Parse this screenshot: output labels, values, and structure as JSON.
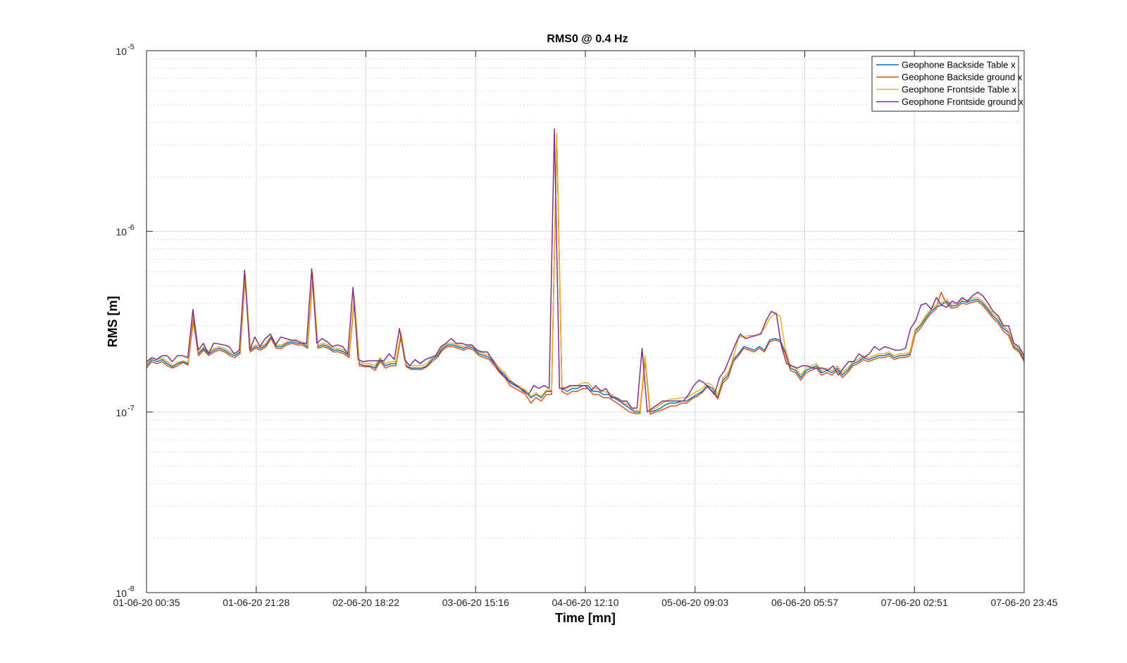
{
  "chart_data": {
    "type": "line",
    "title": "RMS0 @ 0.4 Hz",
    "xlabel": "Time [mn]",
    "ylabel": "RMS [m]",
    "yscale": "log",
    "ylim": [
      1e-08,
      1e-05
    ],
    "y_ticks": [
      {
        "base": "10",
        "exp": "-8",
        "value": 1e-08
      },
      {
        "base": "10",
        "exp": "-7",
        "value": 1e-07
      },
      {
        "base": "10",
        "exp": "-6",
        "value": 1e-06
      },
      {
        "base": "10",
        "exp": "-5",
        "value": 1e-05
      }
    ],
    "x_tick_labels": [
      "01-06-20 00:35",
      "01-06-20 21:28",
      "02-06-20 18:22",
      "03-06-20 15:16",
      "04-06-20 12:10",
      "05-06-20 09:03",
      "06-06-20 05:57",
      "07-06-20 02:51",
      "07-06-20 23:45"
    ],
    "grid": true,
    "legend_position": "top-right",
    "series": [
      {
        "name": "Geophone Backside Table x",
        "color": "#0072BD",
        "values": [
          1.8,
          1.95,
          1.9,
          1.95,
          1.85,
          1.78,
          1.85,
          1.9,
          1.85,
          3.3,
          2.1,
          2.25,
          2.1,
          2.2,
          2.25,
          2.2,
          2.1,
          2.05,
          2.15,
          5.6,
          2.2,
          2.3,
          2.25,
          2.35,
          2.6,
          2.3,
          2.3,
          2.4,
          2.45,
          2.4,
          2.4,
          2.3,
          5.6,
          2.3,
          2.35,
          2.3,
          2.2,
          2.2,
          2.15,
          2.05,
          4.2,
          1.85,
          1.8,
          1.8,
          1.75,
          1.95,
          1.8,
          1.85,
          1.85,
          2.65,
          1.8,
          1.75,
          1.75,
          1.75,
          1.8,
          1.95,
          2.05,
          2.25,
          2.35,
          2.35,
          2.3,
          2.25,
          2.3,
          2.25,
          2.1,
          2.05,
          2.0,
          1.85,
          1.7,
          1.6,
          1.45,
          1.4,
          1.35,
          1.3,
          1.2,
          1.25,
          1.2,
          1.3,
          1.3,
          34.0,
          1.35,
          1.3,
          1.35,
          1.35,
          1.4,
          1.4,
          1.3,
          1.3,
          1.25,
          1.25,
          1.2,
          1.15,
          1.1,
          1.05,
          1.0,
          1.0,
          2.0,
          1.0,
          1.02,
          1.05,
          1.1,
          1.12,
          1.12,
          1.15,
          1.15,
          1.2,
          1.25,
          1.3,
          1.4,
          1.35,
          1.2,
          1.5,
          1.6,
          1.95,
          2.1,
          2.3,
          2.25,
          2.2,
          2.3,
          2.2,
          2.5,
          2.55,
          2.5,
          2.15,
          1.75,
          1.7,
          1.55,
          1.7,
          1.75,
          1.8,
          1.65,
          1.7,
          1.65,
          1.75,
          1.6,
          1.7,
          1.85,
          1.9,
          2.0,
          1.95,
          2.0,
          2.05,
          2.05,
          2.1,
          2.0,
          2.05,
          2.05,
          2.1,
          2.8,
          3.0,
          3.3,
          3.6,
          3.8,
          3.9,
          4.1,
          3.85,
          3.9,
          4.1,
          4.05,
          4.15,
          4.2,
          4.0,
          3.7,
          3.4,
          3.2,
          2.9,
          2.75,
          2.3,
          2.2,
          1.95
        ]
      },
      {
        "name": "Geophone Backside ground x",
        "color": "#D95319",
        "values": [
          1.75,
          1.9,
          1.85,
          1.9,
          1.8,
          1.75,
          1.8,
          1.88,
          1.82,
          3.2,
          2.05,
          2.2,
          2.05,
          2.15,
          2.2,
          2.15,
          2.05,
          2.0,
          2.1,
          5.5,
          2.15,
          2.25,
          2.2,
          2.3,
          2.55,
          2.25,
          2.25,
          2.35,
          2.4,
          2.35,
          2.35,
          2.25,
          5.5,
          2.25,
          2.3,
          2.25,
          2.15,
          2.15,
          2.1,
          2.0,
          4.1,
          1.8,
          1.78,
          1.78,
          1.7,
          1.9,
          1.75,
          1.8,
          1.8,
          2.6,
          1.78,
          1.72,
          1.72,
          1.72,
          1.78,
          1.9,
          2.0,
          2.2,
          2.3,
          2.3,
          2.25,
          2.2,
          2.25,
          2.2,
          2.05,
          2.0,
          1.95,
          1.8,
          1.65,
          1.55,
          1.4,
          1.35,
          1.3,
          1.25,
          1.12,
          1.2,
          1.15,
          1.25,
          1.25,
          33.0,
          1.3,
          1.25,
          1.3,
          1.3,
          1.35,
          1.35,
          1.25,
          1.25,
          1.2,
          1.2,
          1.15,
          1.1,
          1.05,
          1.0,
          0.98,
          0.98,
          1.95,
          0.97,
          1.0,
          1.02,
          1.05,
          1.08,
          1.08,
          1.12,
          1.12,
          1.18,
          1.22,
          1.28,
          1.38,
          1.3,
          1.18,
          1.45,
          1.55,
          1.9,
          2.05,
          2.25,
          2.2,
          2.15,
          2.25,
          2.15,
          2.45,
          2.5,
          2.45,
          2.1,
          1.7,
          1.65,
          1.5,
          1.65,
          1.7,
          1.75,
          1.6,
          1.65,
          1.6,
          1.7,
          1.55,
          1.65,
          1.8,
          1.85,
          1.95,
          1.9,
          1.95,
          2.0,
          2.0,
          2.05,
          1.95,
          2.0,
          2.0,
          2.05,
          2.7,
          2.9,
          3.2,
          3.5,
          3.7,
          4.6,
          4.0,
          3.75,
          3.8,
          4.0,
          3.95,
          4.05,
          4.1,
          3.9,
          3.6,
          3.3,
          3.1,
          2.8,
          2.65,
          2.25,
          2.15,
          1.9
        ]
      },
      {
        "name": "Geophone Frontside Table x",
        "color": "#EDB120",
        "values": [
          1.85,
          2.0,
          1.95,
          2.0,
          1.9,
          1.8,
          1.88,
          1.92,
          1.88,
          3.5,
          2.15,
          2.3,
          2.15,
          2.25,
          2.3,
          2.25,
          2.15,
          2.1,
          2.2,
          5.8,
          2.25,
          2.35,
          2.3,
          2.4,
          2.65,
          2.35,
          2.35,
          2.45,
          2.5,
          2.45,
          2.45,
          2.35,
          5.9,
          2.35,
          2.4,
          2.35,
          2.25,
          2.25,
          2.2,
          2.1,
          4.4,
          1.9,
          1.85,
          1.85,
          1.8,
          2.0,
          1.85,
          1.9,
          1.9,
          2.75,
          1.85,
          1.8,
          1.8,
          1.8,
          1.85,
          2.0,
          2.1,
          2.3,
          2.4,
          2.4,
          2.35,
          2.3,
          2.35,
          2.3,
          2.15,
          2.1,
          2.05,
          1.9,
          1.75,
          1.65,
          1.5,
          1.42,
          1.38,
          1.32,
          1.22,
          1.28,
          1.22,
          1.32,
          1.32,
          35.0,
          1.38,
          1.35,
          1.4,
          1.4,
          1.45,
          1.45,
          1.35,
          1.35,
          1.3,
          1.28,
          1.22,
          1.18,
          1.12,
          1.08,
          1.02,
          1.02,
          2.05,
          1.02,
          1.05,
          1.1,
          1.15,
          1.18,
          1.18,
          1.2,
          1.2,
          1.25,
          1.3,
          1.35,
          1.45,
          1.4,
          1.25,
          1.55,
          1.65,
          2.0,
          2.6,
          2.6,
          2.65,
          2.65,
          2.7,
          2.9,
          3.3,
          3.5,
          3.4,
          2.25,
          1.8,
          1.75,
          1.6,
          1.75,
          1.8,
          1.85,
          1.7,
          1.75,
          1.7,
          1.8,
          1.65,
          1.75,
          1.9,
          1.95,
          2.05,
          2.0,
          2.05,
          2.1,
          2.1,
          2.15,
          2.05,
          2.1,
          2.1,
          2.15,
          2.85,
          3.05,
          3.4,
          3.7,
          3.9,
          4.0,
          4.2,
          3.95,
          4.0,
          4.2,
          4.15,
          4.25,
          4.3,
          4.1,
          3.8,
          3.5,
          3.3,
          3.0,
          2.8,
          2.35,
          2.25,
          2.0
        ]
      },
      {
        "name": "Geophone Frontside ground x",
        "color": "#7E2F8E",
        "values": [
          1.9,
          2.0,
          1.95,
          2.05,
          2.05,
          1.9,
          2.05,
          2.05,
          2.0,
          3.7,
          2.2,
          2.4,
          2.1,
          2.4,
          2.38,
          2.35,
          2.3,
          2.1,
          2.2,
          6.1,
          2.2,
          2.6,
          2.3,
          2.55,
          2.7,
          2.35,
          2.6,
          2.55,
          2.5,
          2.5,
          2.4,
          2.4,
          6.2,
          2.4,
          2.55,
          2.45,
          2.3,
          2.35,
          2.3,
          2.1,
          4.9,
          1.95,
          1.9,
          1.92,
          1.92,
          1.92,
          1.92,
          2.1,
          1.95,
          2.9,
          1.95,
          1.8,
          1.95,
          1.85,
          1.95,
          2.0,
          2.05,
          2.3,
          2.4,
          2.55,
          2.4,
          2.4,
          2.35,
          2.35,
          2.2,
          2.15,
          2.15,
          1.95,
          1.75,
          1.6,
          1.5,
          1.45,
          1.38,
          1.3,
          1.25,
          1.4,
          1.35,
          1.4,
          1.35,
          37.0,
          1.35,
          1.35,
          1.4,
          1.4,
          1.4,
          1.4,
          1.3,
          1.4,
          1.3,
          1.35,
          1.2,
          1.2,
          1.15,
          1.15,
          1.05,
          1.05,
          2.25,
          1.0,
          1.05,
          1.1,
          1.15,
          1.15,
          1.15,
          1.15,
          1.15,
          1.25,
          1.4,
          1.5,
          1.45,
          1.35,
          1.25,
          1.55,
          1.7,
          2.0,
          2.35,
          2.7,
          2.55,
          2.6,
          2.65,
          2.7,
          3.2,
          3.6,
          3.5,
          2.3,
          1.85,
          1.8,
          1.75,
          1.8,
          1.8,
          1.75,
          1.75,
          1.75,
          1.7,
          1.8,
          1.6,
          1.75,
          1.9,
          1.9,
          2.1,
          2.0,
          2.1,
          2.3,
          2.2,
          2.3,
          2.25,
          2.2,
          2.2,
          2.25,
          2.9,
          3.2,
          3.9,
          4.0,
          3.7,
          4.3,
          3.9,
          3.8,
          4.1,
          4.0,
          4.3,
          4.1,
          4.4,
          4.6,
          4.4,
          4.0,
          3.6,
          3.4,
          3.0,
          3.0,
          2.4,
          2.3,
          2.05
        ]
      }
    ]
  }
}
